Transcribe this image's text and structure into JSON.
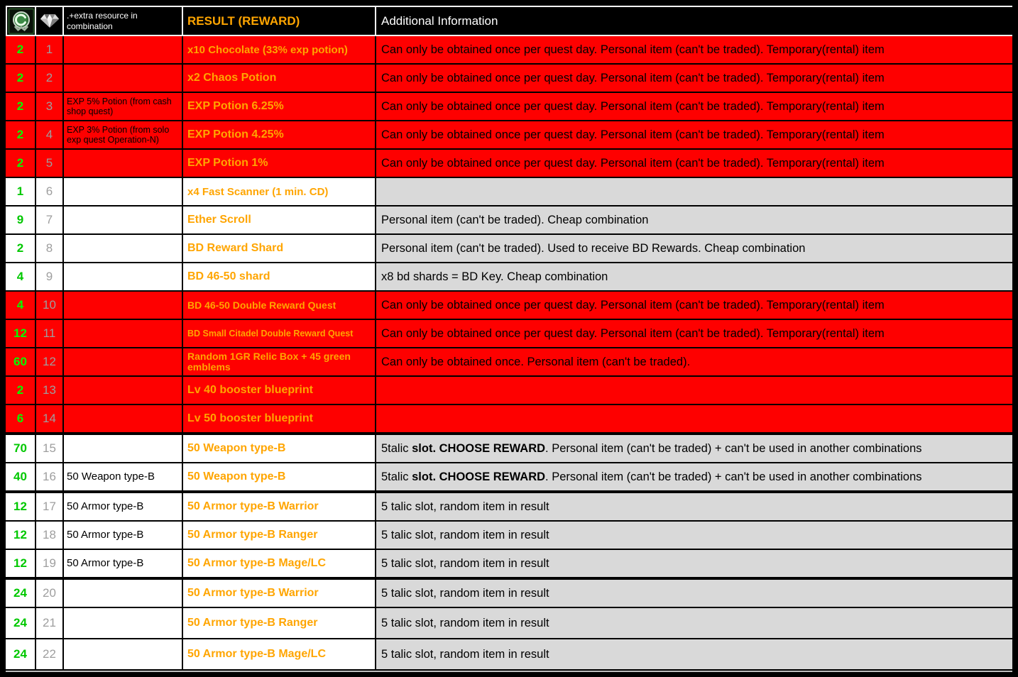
{
  "colors": {
    "header_bg": "#000000",
    "header_text": "#ffffff",
    "red_row_bg": "#fe0000",
    "light_row_bg": "#ffffff",
    "info_gray_bg": "#d9d9d9",
    "qty_green_red": "#00ff00",
    "qty_green_light": "#00c800",
    "index_gray": "#9e9e9e",
    "result_orange": "#ffa500"
  },
  "table": {
    "header": {
      "qty_icon": "green-emblem-icon",
      "index_icon": "gem-icon",
      "extra_label": ".+extra resource in combination",
      "result_label": "RESULT (REWARD)",
      "info_label": "Additional Information"
    },
    "rows": [
      {
        "qty": "2",
        "index": "1",
        "extra": "",
        "result": "x10 Chocolate (33% exp potion)",
        "result_fit": "15",
        "info": "Can only be obtained once per quest day. Personal item (can't be traded). Temporary(rental) item",
        "variant": "red"
      },
      {
        "qty": "2",
        "index": "2",
        "extra": "",
        "result": "x2 Chaos Potion",
        "info": "Can only be obtained once per quest day. Personal item (can't be traded). Temporary(rental) item",
        "variant": "red"
      },
      {
        "qty": "2",
        "index": "3",
        "extra": "EXP 5% Potion (from cash shop quest)",
        "extra_fit": "small",
        "result": "EXP Potion 6.25%",
        "info": "Can only be obtained once per quest day. Personal item (can't be traded). Temporary(rental) item",
        "variant": "red"
      },
      {
        "qty": "2",
        "index": "4",
        "extra": "EXP 3% Potion (from solo exp quest Operation-N)",
        "extra_fit": "small",
        "result": "EXP Potion 4.25%",
        "info": "Can only be obtained once per quest day. Personal item (can't be traded). Temporary(rental) item",
        "variant": "red"
      },
      {
        "qty": "2",
        "index": "5",
        "extra": "",
        "result": "EXP Potion 1%",
        "info": "Can only be obtained once per quest day. Personal item (can't be traded). Temporary(rental) item",
        "variant": "red"
      },
      {
        "qty": "1",
        "index": "6",
        "extra": "",
        "result": "x4 Fast Scanner (1 min. CD)",
        "result_fit": "15",
        "info": "",
        "variant": "light"
      },
      {
        "qty": "9",
        "index": "7",
        "extra": "",
        "result": "Ether Scroll",
        "info": "Personal item (can't be traded). Cheap combination",
        "variant": "light"
      },
      {
        "qty": "2",
        "index": "8",
        "extra": "",
        "result": "BD Reward Shard",
        "info": "Personal item (can't be traded). Used to receive BD Rewards. Cheap combination",
        "variant": "light"
      },
      {
        "qty": "4",
        "index": "9",
        "extra": "",
        "result": "BD 46-50 shard",
        "info": "x8 bd shards = BD Key. Cheap combination",
        "variant": "light"
      },
      {
        "qty": "4",
        "index": "10",
        "extra": "",
        "result": "BD 46-50 Double Reward Quest",
        "result_fit": "14",
        "info": "Can only be obtained once per quest day. Personal item (can't be traded). Temporary(rental) item",
        "variant": "red"
      },
      {
        "qty": "12",
        "index": "11",
        "extra": "",
        "result": "BD Small Citadel Double Reward Quest",
        "result_fit": "12",
        "info": "Can only be obtained once per quest day. Personal item (can't be traded). Temporary(rental) item",
        "variant": "red"
      },
      {
        "qty": "60",
        "index": "12",
        "extra": "",
        "result": "Random 1GR Relic Box + 45 green emblems",
        "result_fit": "14",
        "result_wrap": true,
        "info": "Can only be obtained once. Personal item (can't be traded).",
        "variant": "red"
      },
      {
        "qty": "2",
        "index": "13",
        "extra": "",
        "result": "Lv 40 booster blueprint",
        "info": "",
        "variant": "red"
      },
      {
        "qty": "6",
        "index": "14",
        "extra": "",
        "result": "Lv 50 booster blueprint",
        "info": "",
        "variant": "red",
        "thick_bottom": true
      },
      {
        "qty": "70",
        "index": "15",
        "extra": "",
        "result": "50 Weapon type-B",
        "info_segments": [
          {
            "text": "5talic ",
            "bold": false
          },
          {
            "text": "slot. CHOOSE REWARD",
            "bold": true
          },
          {
            "text": ". Personal item (can't be traded) + can't be used in another combinations",
            "bold": false
          }
        ],
        "variant": "light"
      },
      {
        "qty": "40",
        "index": "16",
        "extra": "50 Weapon type-B",
        "result": "50 Weapon type-B",
        "info_segments": [
          {
            "text": "5talic ",
            "bold": false
          },
          {
            "text": "slot. CHOOSE REWARD",
            "bold": true
          },
          {
            "text": ". Personal item (can't be traded) + can't be used in another combinations",
            "bold": false
          }
        ],
        "variant": "light",
        "thick_bottom": true
      },
      {
        "qty": "12",
        "index": "17",
        "extra": "50 Armor type-B",
        "result": "50 Armor type-B Warrior",
        "info": "5 talic slot, random item in result",
        "variant": "light"
      },
      {
        "qty": "12",
        "index": "18",
        "extra": "50 Armor type-B",
        "result": "50 Armor type-B Ranger",
        "info": "5 talic slot, random item in result",
        "variant": "light"
      },
      {
        "qty": "12",
        "index": "19",
        "extra": "50 Armor type-B",
        "result": "50 Armor type-B Mage/LC",
        "info": "5 talic slot, random item in result",
        "variant": "light",
        "thick_bottom": true
      },
      {
        "qty": "24",
        "index": "20",
        "extra": "",
        "result": "50 Armor type-B Warrior",
        "info": "5 talic slot, random item in result",
        "variant": "light"
      },
      {
        "qty": "24",
        "index": "21",
        "extra": "",
        "result": "50 Armor type-B Ranger",
        "info": "5 talic slot, random item in result",
        "variant": "light",
        "tall": true
      },
      {
        "qty": "24",
        "index": "22",
        "extra": "",
        "result": "50 Armor type-B Mage/LC",
        "info": "5 talic slot, random item in result",
        "variant": "light",
        "tall": true
      }
    ]
  }
}
